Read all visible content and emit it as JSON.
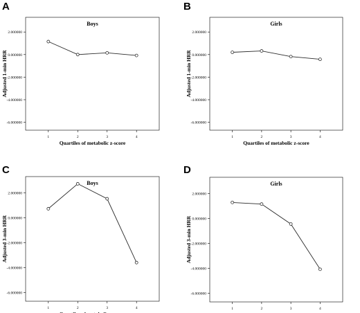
{
  "chart_data": [
    {
      "panel": "A",
      "type": "line",
      "title": "Boys",
      "xlabel": "Quartiles of metabolic z-score",
      "ylabel": "Adjusted 1-min HRR",
      "categories": [
        "1",
        "2",
        "3",
        "4"
      ],
      "values": [
        1.15,
        0.0,
        0.15,
        -0.08
      ],
      "yticks": [
        "2.000000",
        "0.000000",
        "-2.000000",
        "-4.000000",
        "-6.000000"
      ],
      "ytick_values": [
        2,
        0,
        -2,
        -4,
        -6
      ],
      "ylim": [
        -6.7,
        3.3
      ],
      "grid": false
    },
    {
      "panel": "B",
      "type": "line",
      "title": "Girls",
      "xlabel": "Quartiles of metabolic z-score",
      "ylabel": "Adjusted 1-min HRR",
      "categories": [
        "1",
        "2",
        "3",
        "4"
      ],
      "values": [
        0.2,
        0.32,
        -0.18,
        -0.42
      ],
      "yticks": [
        "2.000000",
        "0.000000",
        "-2.000000",
        "-4.000000",
        "-6.000000"
      ],
      "ytick_values": [
        2,
        0,
        -2,
        -4,
        -6
      ],
      "ylim": [
        -6.7,
        3.3
      ],
      "grid": false
    },
    {
      "panel": "C",
      "type": "line",
      "title": "Boys",
      "xlabel": "Quartiles of metabolic z-score",
      "ylabel": "Adjusted 3-min HRR",
      "categories": [
        "1",
        "2",
        "3",
        "4"
      ],
      "values": [
        0.72,
        2.72,
        1.52,
        -3.6
      ],
      "yticks": [
        "2.000000",
        "0.000000",
        "-2.000000",
        "-4.000000",
        "-6.000000"
      ],
      "ytick_values": [
        2,
        0,
        -2,
        -4,
        -6
      ],
      "ylim": [
        -6.7,
        3.3
      ],
      "grid": false
    },
    {
      "panel": "D",
      "type": "line",
      "title": "Girls",
      "xlabel": "Quartiles of metabolic z-score",
      "ylabel": "Adjusted 3-min HRR",
      "categories": [
        "1",
        "2",
        "3",
        "4"
      ],
      "values": [
        1.28,
        1.15,
        -0.45,
        -4.08
      ],
      "yticks": [
        "2.000000",
        "0.000000",
        "-2.000000",
        "-4.000000",
        "-6.000000"
      ],
      "ytick_values": [
        2,
        0,
        -2,
        -4,
        -6
      ],
      "ylim": [
        -6.7,
        3.3
      ],
      "grid": false
    }
  ]
}
